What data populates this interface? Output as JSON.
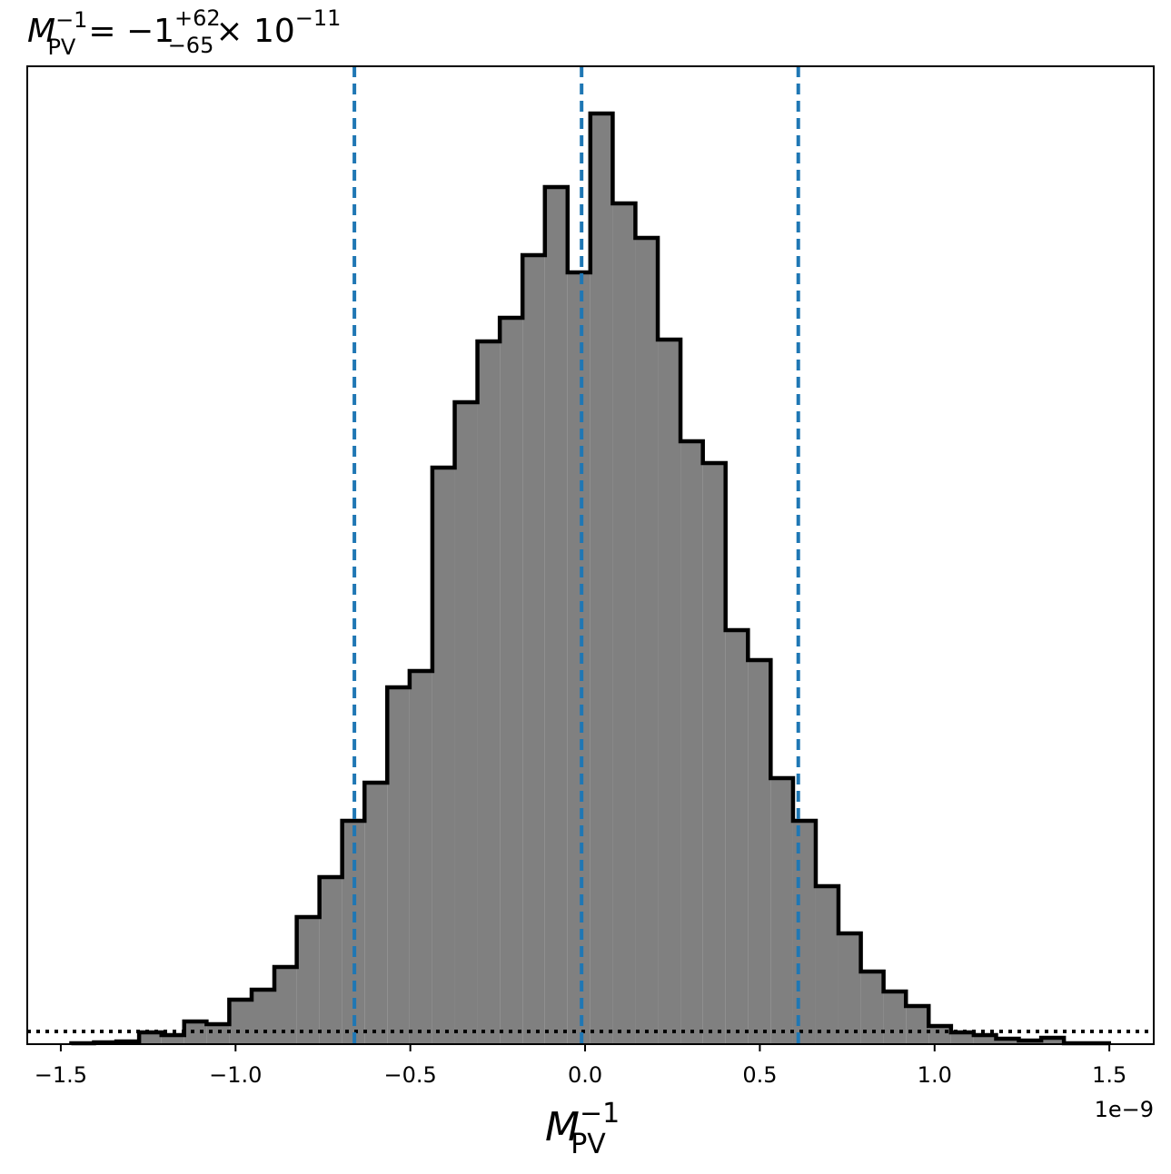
{
  "chart_data": {
    "type": "histogram",
    "title": {
      "symbol": "M",
      "sub": "PV",
      "sup": "−1",
      "equals": "= −1",
      "upper": "+62",
      "lower": "−65",
      "times": "× 10",
      "exponent": "−11"
    },
    "x_label": {
      "symbol": "M",
      "sub": "PV",
      "sup": "−1"
    },
    "x_offset_label": "1e−9",
    "bins": [
      -1.47,
      -1.405,
      -1.341,
      -1.276,
      -1.212,
      -1.147,
      -1.083,
      -1.018,
      -0.954,
      -0.889,
      -0.825,
      -0.76,
      -0.695,
      -0.631,
      -0.566,
      -0.502,
      -0.437,
      -0.373,
      -0.308,
      -0.244,
      -0.179,
      -0.115,
      -0.05,
      0.015,
      0.079,
      0.144,
      0.208,
      0.273,
      0.337,
      0.402,
      0.466,
      0.531,
      0.595,
      0.66,
      0.725,
      0.789,
      0.854,
      0.918,
      0.983,
      1.047,
      1.112,
      1.176,
      1.241,
      1.305,
      1.37,
      1.434,
      1.499
    ],
    "values": [
      1,
      2,
      3,
      13,
      10,
      25,
      22,
      49,
      60,
      85,
      140,
      184,
      246,
      288,
      393,
      411,
      635,
      707,
      774,
      800,
      869,
      944,
      850,
      1025,
      926,
      888,
      776,
      664,
      640,
      456,
      423,
      293,
      246,
      174,
      122,
      80,
      58,
      42,
      20,
      13,
      10,
      6,
      4,
      7,
      1,
      1
    ],
    "color": "#808080",
    "edge_color": "#000000",
    "quantile_lines": [
      -0.66,
      -0.01,
      0.61
    ],
    "quantile_color": "#1f77b4",
    "reference_level": 14,
    "xlim": [
      -1.596,
      1.627
    ],
    "ylim": [
      0,
      1077
    ],
    "xticks": [
      {
        "value": -1.5,
        "label": "−1.5"
      },
      {
        "value": -1.0,
        "label": "−1.0"
      },
      {
        "value": -0.5,
        "label": "−0.5"
      },
      {
        "value": 0,
        "label": "0.0"
      },
      {
        "value": 0.5,
        "label": "0.5"
      },
      {
        "value": 1.0,
        "label": "1.0"
      },
      {
        "value": 1.5,
        "label": "1.5"
      }
    ]
  }
}
